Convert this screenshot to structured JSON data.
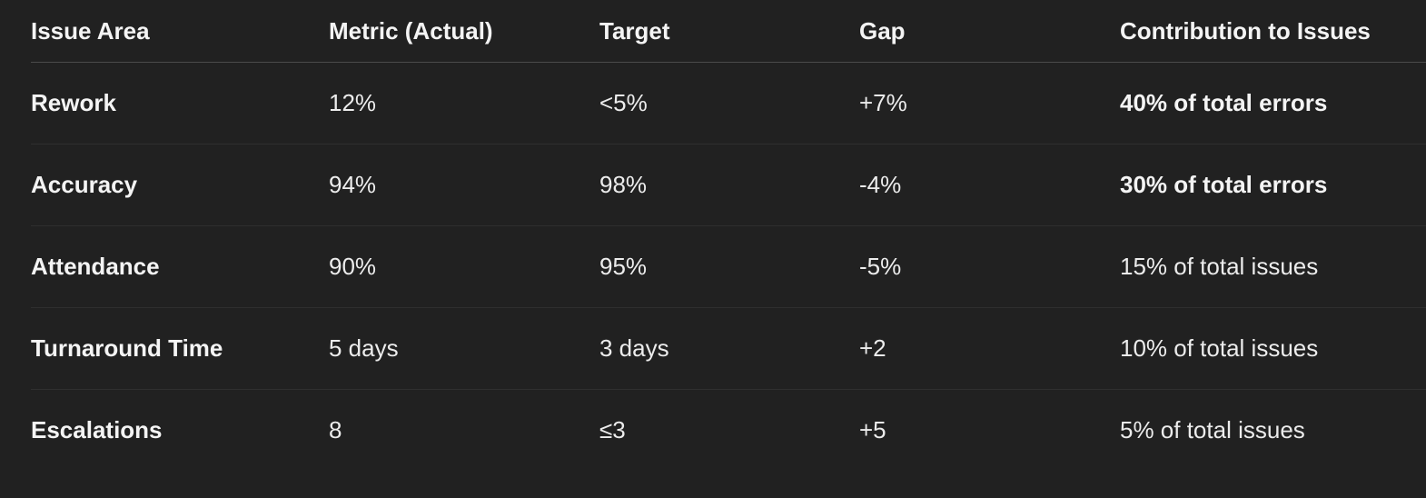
{
  "table": {
    "headers": [
      "Issue Area",
      "Metric (Actual)",
      "Target",
      "Gap",
      "Contribution to Issues"
    ],
    "rows": [
      [
        "Rework",
        "12%",
        "<5%",
        "+7%",
        "40% of total errors"
      ],
      [
        "Accuracy",
        "94%",
        "98%",
        "-4%",
        "30% of total errors"
      ],
      [
        "Attendance",
        "90%",
        "95%",
        "-5%",
        "15% of total issues"
      ],
      [
        "Turnaround Time",
        "5 days",
        "3 days",
        "+2",
        "10% of total issues"
      ],
      [
        "Escalations",
        "8",
        "≤3",
        "+5",
        "5% of total issues"
      ]
    ]
  }
}
